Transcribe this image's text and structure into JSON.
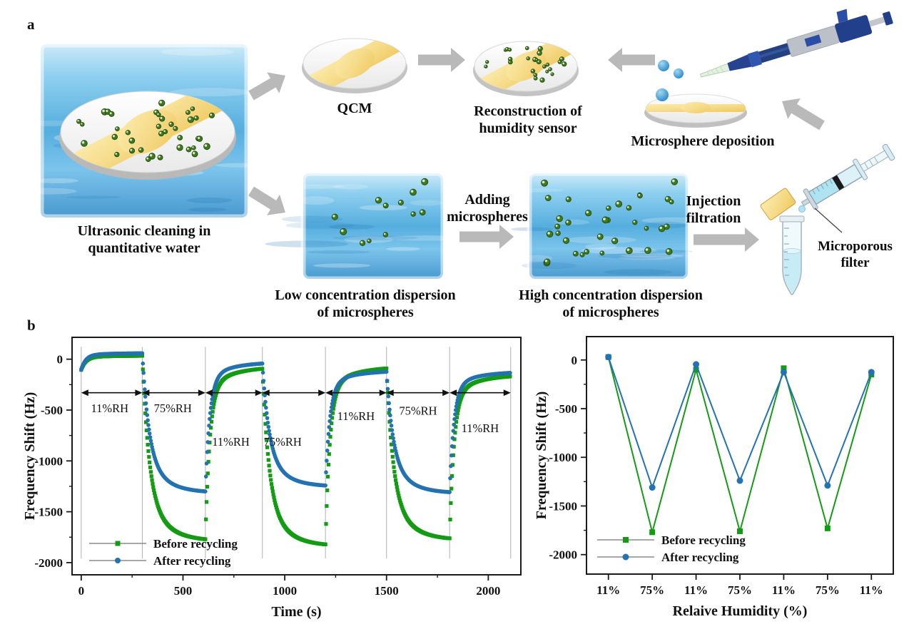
{
  "panel_a": {
    "label": "a",
    "steps": {
      "ultrasonic": [
        "Ultrasonic cleaning in",
        "quantitative water"
      ],
      "qcm": [
        "QCM"
      ],
      "reconstruction": [
        "Reconstruction of",
        "humidity sensor"
      ],
      "deposition": [
        "Microsphere deposition"
      ],
      "low": [
        "Low concentration dispersion",
        "of microspheres"
      ],
      "adding": [
        "Adding",
        "microspheres"
      ],
      "high": [
        "High concentration dispersion",
        "of microspheres"
      ],
      "injection": [
        "Injection",
        "filtration"
      ],
      "filter": [
        "Microporous",
        "filter"
      ]
    }
  },
  "panel_b": {
    "label": "b"
  },
  "colors": {
    "series_before": "#149b14",
    "series_after": "#2372b2",
    "arrow_gray": "#b9b9b9",
    "microsphere_green": "#3f7a1d",
    "microsphere_edge": "#274f10",
    "gold": "#f3d27a",
    "water_blue": "#5fb3e4",
    "gridline_gray": "#b0b0b0",
    "legend_line_gray": "#8a8a8a"
  },
  "chart_data": [
    {
      "id": "time-response",
      "type": "line",
      "title": "",
      "xlabel": "Time (s)",
      "ylabel": "Frequency Shift (Hz)",
      "xticks": [
        0,
        500,
        1000,
        1500,
        2000
      ],
      "yticks": [
        0,
        -500,
        -1000,
        -1500,
        -2000
      ],
      "xlim": [
        -45,
        2160
      ],
      "ylim": [
        -2120,
        215
      ],
      "grid": "vertical lines at humidity-segment boundaries",
      "legend_position": "bottom-left",
      "segments": {
        "boundaries": [
          0,
          300,
          610,
          890,
          1200,
          1500,
          1810,
          2110
        ],
        "labels": [
          "11%RH",
          "75%RH",
          "11%RH",
          "75%RH",
          "11%RH",
          "75%RH",
          "11%RH"
        ],
        "label_anchors": [
          [
            140,
            -480
          ],
          [
            450,
            -480
          ],
          [
            735,
            -810
          ],
          [
            990,
            -810
          ],
          [
            1350,
            -555
          ],
          [
            1655,
            -505
          ],
          [
            1960,
            -675
          ]
        ],
        "arrow_y": -330
      },
      "series": [
        {
          "name": "Before recycling",
          "color": "#149b14",
          "marker": "square",
          "start_value": -105,
          "segment_plateaus": [
            35,
            -1790,
            -70,
            -1840,
            -70,
            -1780,
            -150
          ]
        },
        {
          "name": "After recycling",
          "color": "#2372b2",
          "marker": "circle",
          "start_value": -105,
          "segment_plateaus": [
            60,
            -1315,
            -25,
            -1255,
            -110,
            -1320,
            -120
          ]
        }
      ]
    },
    {
      "id": "humidity-cycles",
      "type": "line",
      "title": "",
      "xlabel": "Relaive Humidity (%)",
      "ylabel": "Frequency Shift (Hz)",
      "categories": [
        "11%",
        "75%",
        "11%",
        "75%",
        "11%",
        "75%",
        "11%"
      ],
      "yticks": [
        0,
        -500,
        -1000,
        -1500,
        -2000
      ],
      "ylim": [
        -2200,
        240
      ],
      "grid": "off",
      "legend_position": "bottom-left",
      "series": [
        {
          "name": "Before recycling",
          "color": "#149b14",
          "marker": "square",
          "values": [
            30,
            -1770,
            -100,
            -1760,
            -85,
            -1730,
            -150
          ]
        },
        {
          "name": "After recycling",
          "color": "#2372b2",
          "marker": "circle",
          "values": [
            30,
            -1310,
            -45,
            -1240,
            -125,
            -1290,
            -125
          ]
        }
      ]
    }
  ]
}
